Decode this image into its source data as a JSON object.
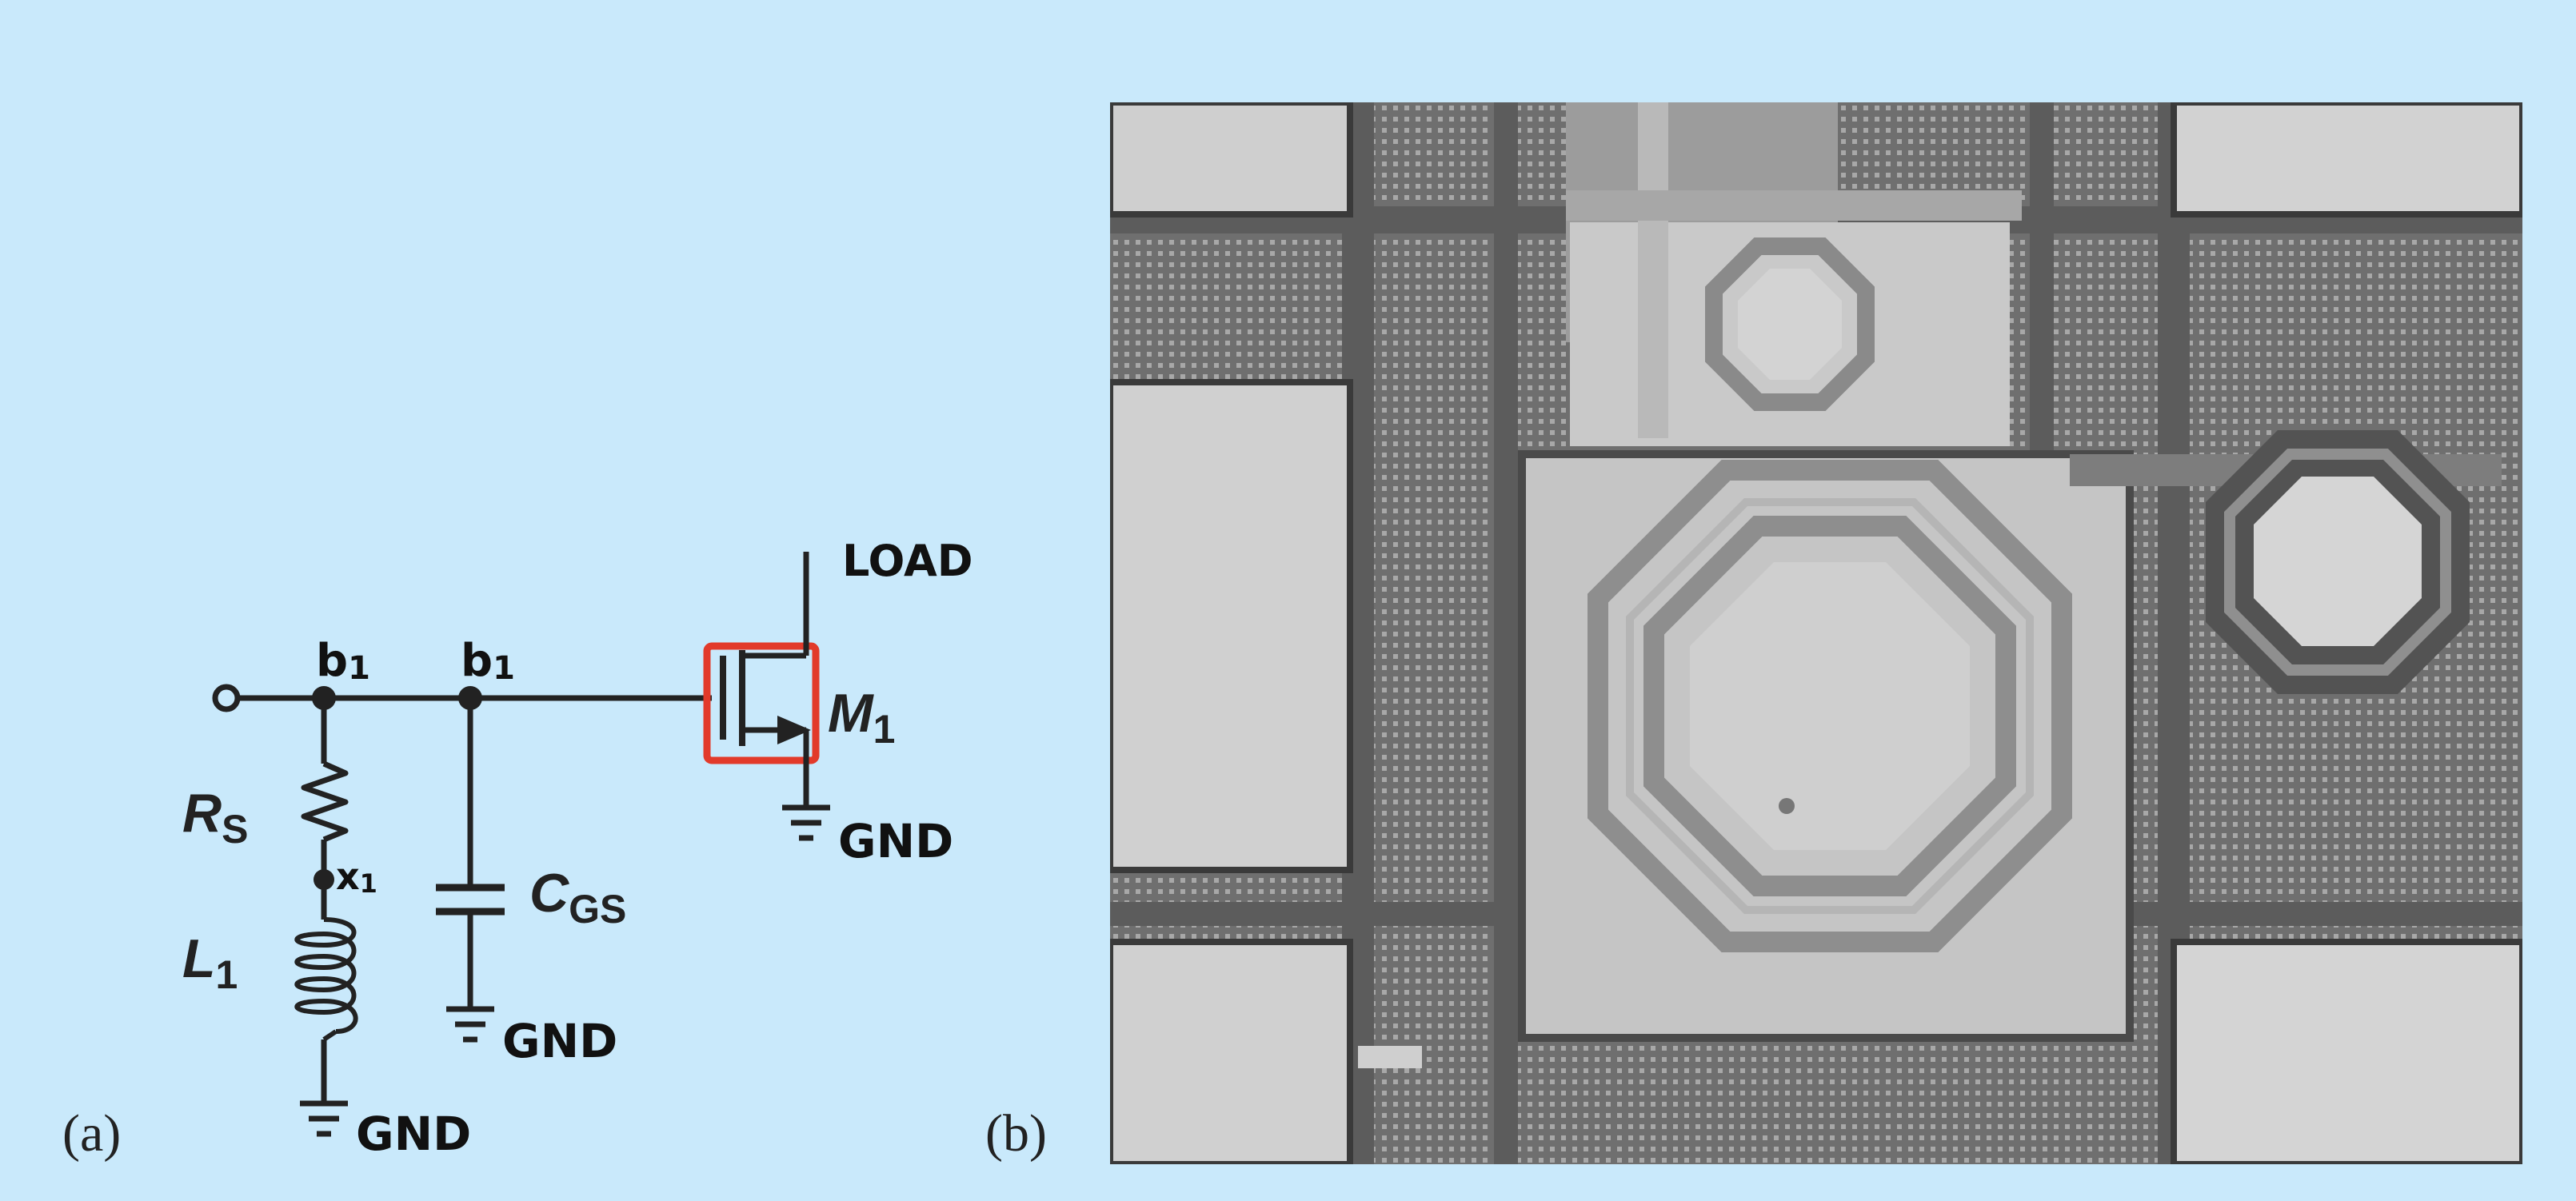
{
  "panels": {
    "a": {
      "tag": "(a)"
    },
    "b": {
      "tag": "(b)"
    }
  },
  "schematic": {
    "node_left": "b",
    "node_left_sub": "1",
    "node_mid": "b",
    "node_mid_sub": "1",
    "node_x": "x",
    "node_x_sub": "1",
    "load": "LOAD",
    "transistor": "M",
    "transistor_sub": "1",
    "resistor": "R",
    "resistor_sub": "S",
    "capacitor": "C",
    "capacitor_sub": "GS",
    "inductor": "L",
    "inductor_sub": "1",
    "gnd_m1": "GND",
    "gnd_cgs": "GND",
    "gnd_l1": "GND",
    "highlight_color": "#e23a2a"
  },
  "micrograph": {
    "image": "grayscale chip micrograph with octagonal spiral inductors and pads"
  }
}
